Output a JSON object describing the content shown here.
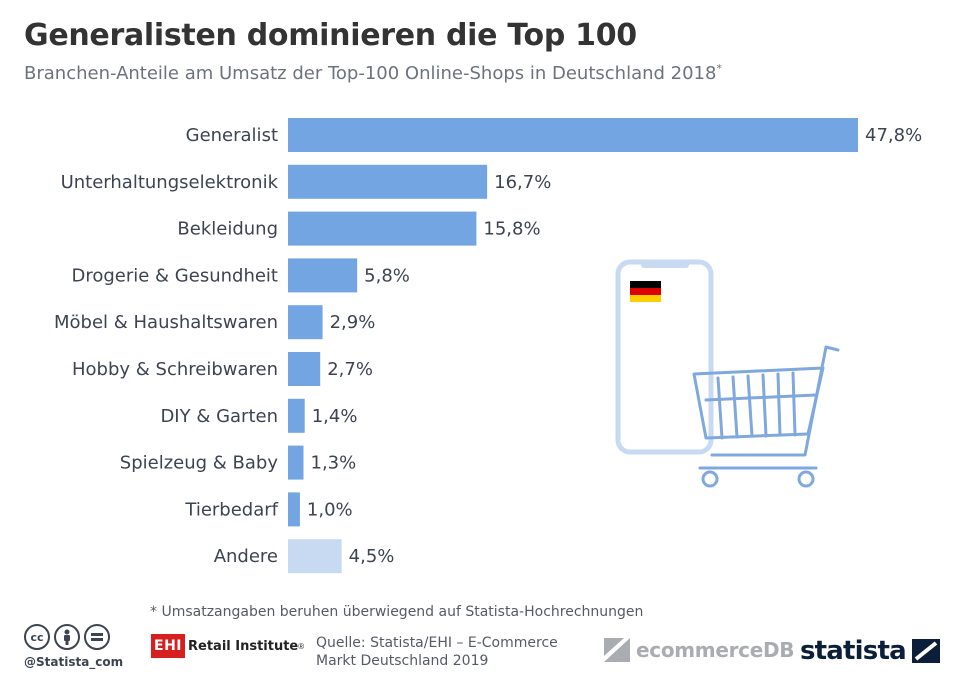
{
  "header": {
    "title": "Generalisten dominieren die Top 100",
    "subtitle": "Branchen-Anteile am Umsatz der Top-100 Online-Shops in Deutschland 2018",
    "subtitle_mark": "*"
  },
  "chart_data": {
    "type": "bar",
    "orientation": "horizontal",
    "title": "Generalisten dominieren die Top 100",
    "categories": [
      "Generalist",
      "Unterhaltungselektronik",
      "Bekleidung",
      "Drogerie & Gesundheit",
      "Möbel & Haushaltswaren",
      "Hobby & Schreibwaren",
      "DIY & Garten",
      "Spielzeug & Baby",
      "Tierbedarf",
      "Andere"
    ],
    "values": [
      47.8,
      16.7,
      15.8,
      5.8,
      2.9,
      2.7,
      1.4,
      1.3,
      1.0,
      4.5
    ],
    "value_labels": [
      "47,8%",
      "16,7%",
      "15,8%",
      "5,8%",
      "2,9%",
      "2,7%",
      "1,4%",
      "1,3%",
      "1,0%",
      "4,5%"
    ],
    "unit": "%",
    "xlim": [
      0,
      47.8
    ],
    "grid": false,
    "colors": {
      "bar": "#73a5e3",
      "bar_other": "#c8daf2"
    }
  },
  "footer": {
    "footnote": "* Umsatzangaben beruhen überwiegend auf Statista-Hochrechnungen",
    "handle": "@Statista_com",
    "ehi_box": "EHI",
    "ehi_text": "Retail Institute",
    "ehi_mark": "®",
    "source_line1": "Quelle: Statista/EHI – E-Commerce",
    "source_line2": "Markt Deutschland 2019",
    "ecdb": "ecommerceDB",
    "statista": "statista"
  },
  "colors": {
    "accent": "#73a5e3",
    "title": "#333333",
    "brand": "#0b1e3a",
    "flag_black": "#000000",
    "flag_red": "#dd0000",
    "flag_gold": "#ffce00"
  }
}
